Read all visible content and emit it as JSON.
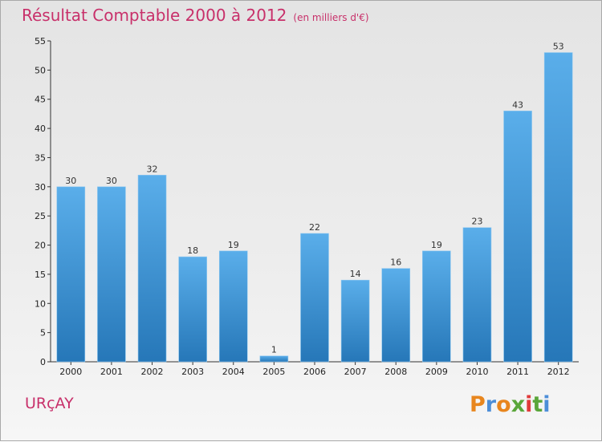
{
  "header": {
    "title": "Résultat Comptable 2000 à 2012",
    "subtitle": "(en milliers d'€)"
  },
  "footer": {
    "commune": "URçAY",
    "logo_text": "Proxiti"
  },
  "colors": {
    "title": "#c8306a",
    "bar_top": "#5aaeea",
    "bar_bottom": "#2677b8",
    "logo_letters": [
      "#e8861e",
      "#4c8ed8",
      "#e8861e",
      "#5aa63a",
      "#e03a3a",
      "#5aa63a",
      "#4c8ed8"
    ]
  },
  "chart_data": {
    "type": "bar",
    "title": "Résultat Comptable 2000 à 2012",
    "subtitle": "(en milliers d'€)",
    "categories": [
      "2000",
      "2001",
      "2002",
      "2003",
      "2004",
      "2005",
      "2006",
      "2007",
      "2008",
      "2009",
      "2010",
      "2011",
      "2012"
    ],
    "values": [
      30,
      30,
      32,
      18,
      19,
      1,
      22,
      14,
      16,
      19,
      23,
      43,
      53
    ],
    "ylim": [
      0,
      55
    ],
    "yticks": [
      0,
      5,
      10,
      15,
      20,
      25,
      30,
      35,
      40,
      45,
      50,
      55
    ],
    "grid": false,
    "data_labels": true
  }
}
